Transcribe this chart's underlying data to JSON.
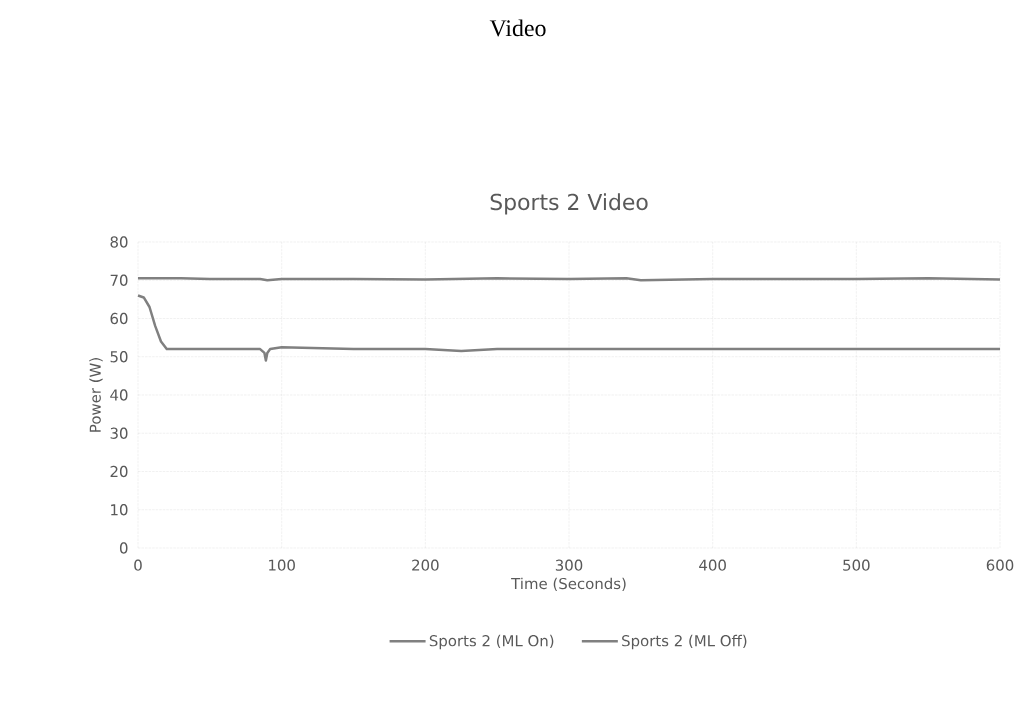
{
  "chart_data": {
    "type": "line",
    "title": "Sports 2 Video",
    "xlabel": "Time (Seconds)",
    "ylabel": "Power (W)",
    "annotations": [
      "Video"
    ],
    "xlim": [
      0,
      600
    ],
    "xticks": [
      0,
      100,
      200,
      300,
      400,
      500,
      600
    ],
    "ylim": [
      0,
      80
    ],
    "yticks": [
      0,
      10,
      20,
      30,
      40,
      50,
      60,
      70,
      80
    ],
    "grid": true,
    "legend": "bottom",
    "line_style": "solid",
    "marker": "none",
    "series": [
      {
        "name": "Sports 2 (ML On)",
        "color": "#808080",
        "x": [
          0,
          4,
          8,
          12,
          16,
          20,
          50,
          85,
          88,
          89,
          90,
          92,
          100,
          150,
          200,
          225,
          250,
          300,
          350,
          400,
          450,
          500,
          550,
          600
        ],
        "values": [
          66,
          65.5,
          63,
          58,
          54,
          52,
          52,
          52,
          51,
          49,
          51,
          52,
          52.5,
          52,
          52,
          51.5,
          52,
          52,
          52,
          52,
          52,
          52,
          52,
          52
        ]
      },
      {
        "name": "Sports 2 (ML Off)",
        "color": "#808080",
        "x": [
          0,
          30,
          50,
          85,
          90,
          100,
          150,
          200,
          250,
          300,
          340,
          350,
          400,
          450,
          500,
          550,
          600
        ],
        "values": [
          70.5,
          70.5,
          70.3,
          70.3,
          70,
          70.3,
          70.3,
          70.2,
          70.5,
          70.3,
          70.5,
          70,
          70.3,
          70.3,
          70.3,
          70.5,
          70.2
        ]
      }
    ]
  }
}
